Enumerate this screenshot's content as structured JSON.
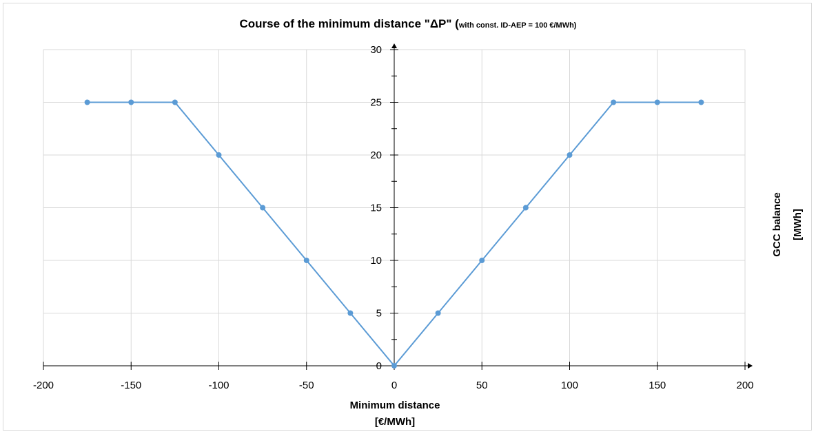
{
  "chart_data": {
    "type": "line",
    "title": "Course of the minimum distance \"ΔP\" (",
    "subtitle": "with const. ID-AEP = 100 €/MWh)",
    "xlabel": [
      "Minimum distance",
      "[€/MWh]"
    ],
    "ylabel": [
      "GCC balance",
      "[MWh]"
    ],
    "xlim": [
      -200,
      200
    ],
    "ylim": [
      0,
      30
    ],
    "x_ticks": [
      -200,
      -150,
      -100,
      -50,
      0,
      50,
      100,
      150,
      200
    ],
    "y_ticks": [
      0,
      5,
      10,
      15,
      20,
      25,
      30
    ],
    "grid": true,
    "legend": "none",
    "colors": {
      "series": "#5b9bd5",
      "grid": "#d9d9d9",
      "axis": "#000000"
    },
    "series": [
      {
        "x": [
          -175,
          -150,
          -125,
          -100,
          -75,
          -50,
          -25,
          0,
          25,
          50,
          75,
          100,
          125,
          150,
          175
        ],
        "y": [
          25,
          25,
          25,
          20,
          15,
          10,
          5,
          0,
          5,
          10,
          15,
          20,
          25,
          25,
          25
        ]
      }
    ]
  }
}
